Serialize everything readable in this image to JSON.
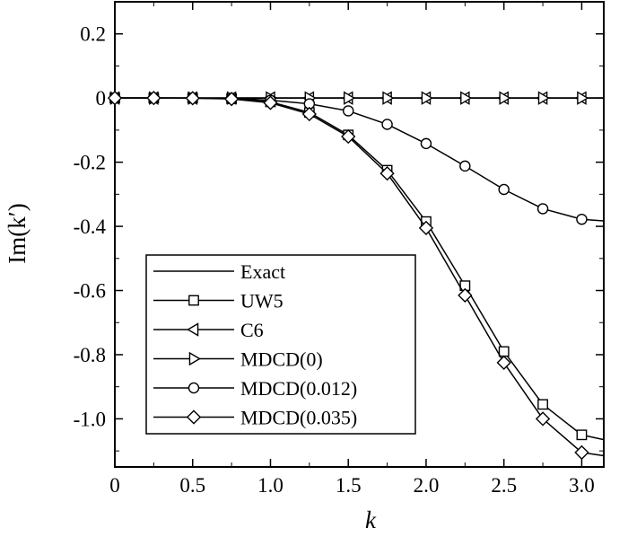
{
  "chart_data": {
    "type": "line",
    "title": "",
    "xlabel": "k",
    "ylabel": "Im(k′)",
    "xlim": [
      0,
      3.1416
    ],
    "ylim": [
      -1.15,
      0.3
    ],
    "xticks": [
      "0",
      "0.5",
      "1.0",
      "1.5",
      "2.0",
      "2.5",
      "3.0"
    ],
    "xtick_values": [
      0,
      0.5,
      1.0,
      1.5,
      2.0,
      2.5,
      3.0
    ],
    "yticks": [
      "0.2",
      "0",
      "-0.2",
      "-0.4",
      "-0.6",
      "-0.8",
      "-1.0"
    ],
    "ytick_values": [
      0.2,
      0,
      -0.2,
      -0.4,
      -0.6,
      -0.8,
      -1.0
    ],
    "grid": false,
    "legend_position": "lower-left",
    "series": [
      {
        "name": "Exact",
        "marker": "none",
        "x": [
          0,
          3.1416
        ],
        "y": [
          0,
          0
        ],
        "marker_x": []
      },
      {
        "name": "UW5",
        "marker": "square",
        "x": [
          0,
          0.25,
          0.5,
          0.75,
          1.0,
          1.25,
          1.5,
          1.75,
          2.0,
          2.25,
          2.5,
          2.75,
          3.0,
          3.1416
        ],
        "y": [
          0,
          0,
          -0.0003,
          -0.002,
          -0.012,
          -0.045,
          -0.115,
          -0.225,
          -0.385,
          -0.585,
          -0.79,
          -0.955,
          -1.05,
          -1.065
        ],
        "marker_x": [
          0,
          0.25,
          0.5,
          0.75,
          1.0,
          1.25,
          1.5,
          1.75,
          2.0,
          2.25,
          2.5,
          2.75,
          3.0
        ]
      },
      {
        "name": "C6",
        "marker": "triangle-left",
        "x": [
          0,
          3.1416
        ],
        "y": [
          0,
          0
        ],
        "marker_x": [
          0,
          0.25,
          0.5,
          0.75,
          1.0,
          1.25,
          1.5,
          1.75,
          2.0,
          2.25,
          2.5,
          2.75,
          3.0
        ]
      },
      {
        "name": "MDCD(0)",
        "marker": "triangle-right",
        "x": [
          0,
          3.1416
        ],
        "y": [
          0,
          0
        ],
        "marker_x": [
          0,
          0.25,
          0.5,
          0.75,
          1.0,
          1.25,
          1.5,
          1.75,
          2.0,
          2.25,
          2.5,
          2.75,
          3.0
        ]
      },
      {
        "name": "MDCD(0.012)",
        "marker": "circle",
        "x": [
          0,
          0.25,
          0.5,
          0.75,
          1.0,
          1.25,
          1.5,
          1.75,
          2.0,
          2.25,
          2.5,
          2.75,
          3.0,
          3.1416
        ],
        "y": [
          0,
          0,
          0,
          -0.001,
          -0.007,
          -0.018,
          -0.04,
          -0.082,
          -0.142,
          -0.212,
          -0.285,
          -0.345,
          -0.378,
          -0.383
        ],
        "marker_x": [
          0,
          0.25,
          0.5,
          0.75,
          1.0,
          1.25,
          1.5,
          1.75,
          2.0,
          2.25,
          2.5,
          2.75,
          3.0
        ]
      },
      {
        "name": "MDCD(0.035)",
        "marker": "diamond",
        "x": [
          0,
          0.25,
          0.5,
          0.75,
          1.0,
          1.25,
          1.5,
          1.75,
          2.0,
          2.25,
          2.5,
          2.75,
          3.0,
          3.1416
        ],
        "y": [
          0,
          0,
          -0.0005,
          -0.003,
          -0.015,
          -0.05,
          -0.12,
          -0.235,
          -0.405,
          -0.615,
          -0.825,
          -1.0,
          -1.105,
          -1.115
        ],
        "marker_x": [
          0,
          0.25,
          0.5,
          0.75,
          1.0,
          1.25,
          1.5,
          1.75,
          2.0,
          2.25,
          2.5,
          2.75,
          3.0
        ]
      }
    ]
  }
}
